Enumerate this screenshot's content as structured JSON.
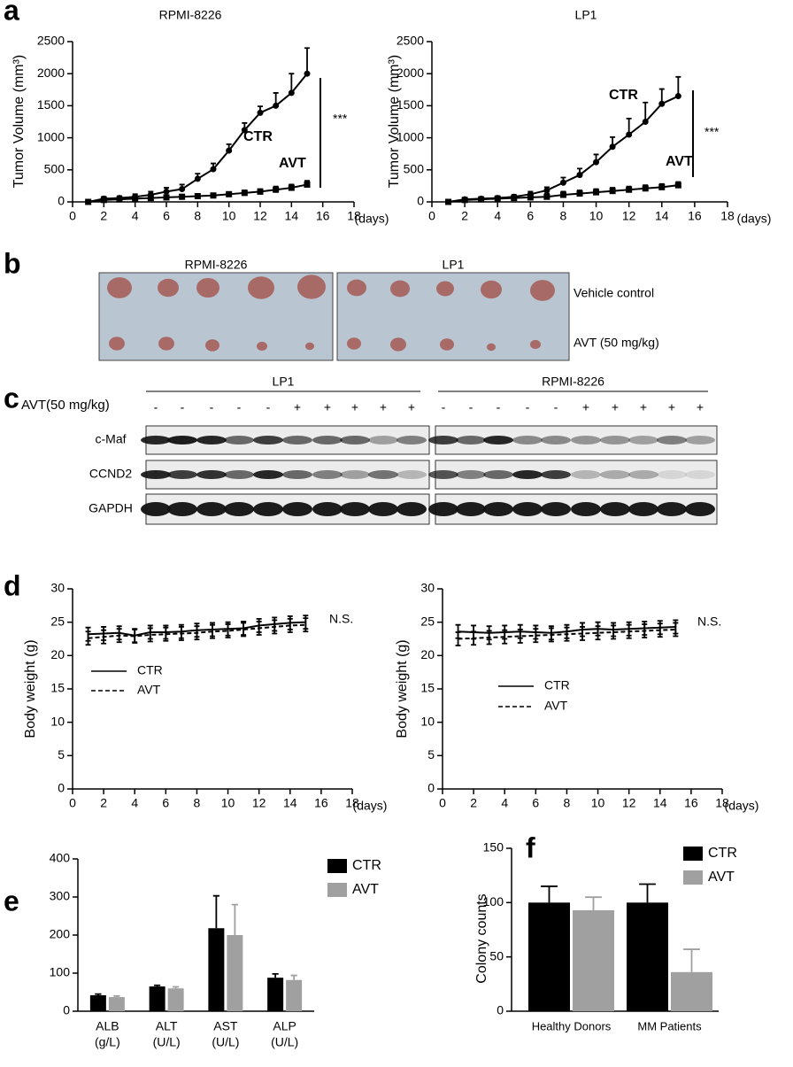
{
  "panel_labels": [
    "a",
    "b",
    "c",
    "d",
    "e",
    "f"
  ],
  "chart_data": [
    {
      "type": "line",
      "title": "RPMI-8226",
      "y_label": "Tumor Volume (mm³)",
      "x_unit": "(days)",
      "x": [
        1,
        2,
        3,
        4,
        5,
        6,
        7,
        8,
        9,
        10,
        11,
        12,
        13,
        14,
        15
      ],
      "xlim": [
        0,
        18
      ],
      "xticks": [
        0,
        2,
        4,
        6,
        8,
        10,
        12,
        14,
        16,
        18
      ],
      "ylim": [
        0,
        2500
      ],
      "yticks": [
        0,
        500,
        1000,
        1500,
        2000,
        2500
      ],
      "error_direction": "up",
      "annotations": [
        "***"
      ],
      "series": [
        {
          "name": "CTR",
          "color": "#000000",
          "marker": "circle",
          "dashed": false,
          "values": [
            0,
            50,
            60,
            80,
            110,
            160,
            200,
            360,
            510,
            800,
            1120,
            1390,
            1500,
            1700,
            2000
          ],
          "errors": [
            10,
            30,
            30,
            40,
            50,
            60,
            70,
            80,
            90,
            100,
            110,
            100,
            200,
            300,
            400
          ]
        },
        {
          "name": "AVT",
          "color": "#000000",
          "marker": "square",
          "dashed": false,
          "values": [
            0,
            30,
            40,
            50,
            60,
            70,
            80,
            90,
            100,
            120,
            140,
            160,
            190,
            220,
            270
          ],
          "errors": [
            10,
            20,
            20,
            20,
            30,
            30,
            30,
            30,
            30,
            30,
            40,
            40,
            50,
            50,
            60
          ]
        }
      ]
    },
    {
      "type": "line",
      "title": "LP1",
      "y_label": "Tumor Volume (mm³)",
      "x_unit": "(days)",
      "x": [
        1,
        2,
        3,
        4,
        5,
        6,
        7,
        8,
        9,
        10,
        11,
        12,
        13,
        14,
        15
      ],
      "xlim": [
        0,
        18
      ],
      "xticks": [
        0,
        2,
        4,
        6,
        8,
        10,
        12,
        14,
        16,
        18
      ],
      "ylim": [
        0,
        2500
      ],
      "yticks": [
        0,
        500,
        1000,
        1500,
        2000,
        2500
      ],
      "error_direction": "up",
      "annotations": [
        "***"
      ],
      "series": [
        {
          "name": "CTR",
          "color": "#000000",
          "marker": "circle",
          "dashed": false,
          "values": [
            0,
            40,
            50,
            60,
            80,
            120,
            180,
            300,
            420,
            620,
            860,
            1050,
            1250,
            1530,
            1650
          ],
          "errors": [
            10,
            20,
            20,
            30,
            30,
            40,
            50,
            80,
            100,
            120,
            150,
            250,
            300,
            230,
            300
          ]
        },
        {
          "name": "AVT",
          "color": "#000000",
          "marker": "square",
          "dashed": false,
          "values": [
            0,
            30,
            40,
            50,
            60,
            70,
            80,
            110,
            130,
            150,
            170,
            190,
            210,
            230,
            260
          ],
          "errors": [
            10,
            20,
            20,
            30,
            30,
            40,
            50,
            50,
            50,
            50,
            50,
            50,
            50,
            50,
            50
          ]
        }
      ]
    },
    {
      "type": "line",
      "y_label": "Body weight (g)",
      "x_unit": "(days)",
      "x": [
        1,
        2,
        3,
        4,
        5,
        6,
        7,
        8,
        9,
        10,
        11,
        12,
        13,
        14,
        15
      ],
      "xlim": [
        0,
        18
      ],
      "xticks": [
        0,
        2,
        4,
        6,
        8,
        10,
        12,
        14,
        16,
        18
      ],
      "ylim": [
        0,
        30
      ],
      "yticks": [
        0,
        5,
        10,
        15,
        20,
        25,
        30
      ],
      "error_direction": "both",
      "annotations": [
        "N.S."
      ],
      "legend": true,
      "series": [
        {
          "name": "CTR",
          "color": "#000000",
          "marker": "none",
          "dashed": false,
          "values": [
            23.2,
            23.3,
            23.4,
            23.0,
            23.5,
            23.5,
            23.6,
            23.8,
            23.9,
            24.0,
            24.1,
            24.5,
            24.7,
            24.9,
            25.0
          ],
          "errors": [
            1,
            1,
            1,
            1,
            1,
            1,
            1,
            1,
            1,
            1,
            1,
            1,
            1,
            1,
            1
          ]
        },
        {
          "name": "AVT",
          "color": "#000000",
          "marker": "none",
          "dashed": true,
          "values": [
            22.6,
            22.8,
            23.0,
            22.9,
            23.1,
            23.2,
            23.3,
            23.4,
            23.6,
            23.7,
            23.9,
            24.1,
            24.3,
            24.5,
            24.6
          ],
          "errors": [
            1,
            1,
            1,
            1,
            1,
            1,
            1,
            1,
            1,
            1,
            1,
            1,
            1,
            1,
            1
          ]
        }
      ]
    },
    {
      "type": "line",
      "y_label": "Body weight (g)",
      "x_unit": "(days)",
      "x": [
        1,
        2,
        3,
        4,
        5,
        6,
        7,
        8,
        9,
        10,
        11,
        12,
        13,
        14,
        15
      ],
      "xlim": [
        0,
        18
      ],
      "xticks": [
        0,
        2,
        4,
        6,
        8,
        10,
        12,
        14,
        16,
        18
      ],
      "ylim": [
        0,
        30
      ],
      "yticks": [
        0,
        5,
        10,
        15,
        20,
        25,
        30
      ],
      "error_direction": "both",
      "annotations": [
        "N.S."
      ],
      "legend": true,
      "series": [
        {
          "name": "CTR",
          "color": "#000000",
          "marker": "none",
          "dashed": false,
          "values": [
            23.6,
            23.5,
            23.4,
            23.5,
            23.6,
            23.5,
            23.4,
            23.6,
            23.9,
            24.0,
            23.9,
            24.0,
            24.1,
            24.2,
            24.3
          ],
          "errors": [
            1,
            1,
            1,
            1,
            1,
            1,
            1,
            1,
            1,
            1,
            1,
            1,
            1,
            1,
            1
          ]
        },
        {
          "name": "AVT",
          "color": "#000000",
          "marker": "none",
          "dashed": true,
          "values": [
            22.5,
            22.6,
            22.7,
            22.8,
            22.9,
            23.0,
            23.1,
            23.2,
            23.3,
            23.4,
            23.5,
            23.6,
            23.7,
            23.8,
            23.9
          ],
          "errors": [
            1,
            1,
            1,
            1,
            1,
            1,
            1,
            1,
            1,
            1,
            1,
            1,
            1,
            1,
            1
          ]
        }
      ]
    },
    {
      "type": "bar",
      "categories": [
        "ALB",
        "ALT",
        "AST",
        "ALP"
      ],
      "category_units": [
        "(g/L)",
        "(U/L)",
        "(U/L)",
        "(U/L)"
      ],
      "ylim": [
        0,
        400
      ],
      "yticks": [
        0,
        100,
        200,
        300,
        400
      ],
      "legend": true,
      "series": [
        {
          "name": "CTR",
          "color": "#000000",
          "values": [
            42,
            65,
            218,
            88
          ],
          "errors": [
            3,
            3,
            85,
            10
          ]
        },
        {
          "name": "AVT",
          "color": "#a0a0a0",
          "values": [
            37,
            60,
            200,
            82
          ],
          "errors": [
            3,
            4,
            80,
            12
          ]
        }
      ]
    },
    {
      "type": "bar",
      "y_label": "Colony counts",
      "categories": [
        "Healthy Donors",
        "MM Patients"
      ],
      "ylim": [
        0,
        150
      ],
      "yticks": [
        0,
        50,
        100,
        150
      ],
      "legend": true,
      "series": [
        {
          "name": "CTR",
          "color": "#000000",
          "values": [
            100,
            100
          ],
          "errors": [
            15,
            17
          ]
        },
        {
          "name": "AVT",
          "color": "#a0a0a0",
          "values": [
            93,
            36
          ],
          "errors": [
            12,
            21
          ]
        }
      ]
    }
  ],
  "photo": {
    "columns": [
      "RPMI-8226",
      "LP1"
    ],
    "rows": [
      "Vehicle control",
      "AVT (50 mg/kg)"
    ]
  },
  "blot": {
    "treatment_label": "AVT(50 mg/kg)",
    "groups": [
      {
        "name": "LP1",
        "lanes": [
          "-",
          "-",
          "-",
          "-",
          "-",
          "+",
          "+",
          "+",
          "+",
          "+"
        ]
      },
      {
        "name": "RPMI-8226",
        "lanes": [
          "-",
          "-",
          "-",
          "-",
          "-",
          "+",
          "+",
          "+",
          "+",
          "+"
        ]
      }
    ],
    "proteins": [
      "c-Maf",
      "CCND2",
      "GAPDH"
    ]
  }
}
